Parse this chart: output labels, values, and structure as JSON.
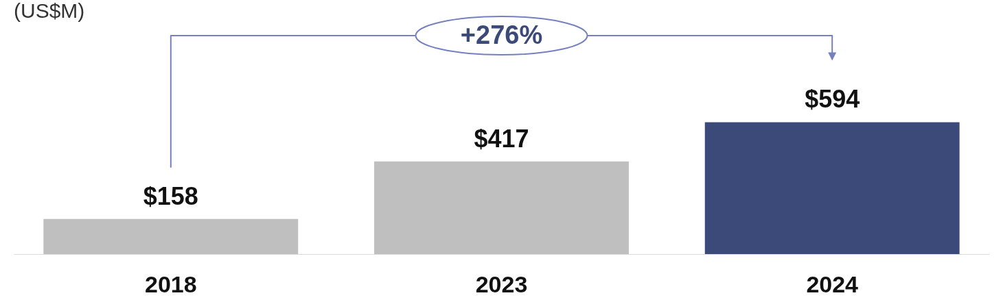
{
  "chart_data": {
    "type": "bar",
    "title": "(US$M)",
    "categories": [
      "2018",
      "2023",
      "2024"
    ],
    "values": [
      158,
      417,
      594
    ],
    "colors": [
      "#bfbfbf",
      "#bfbfbf",
      "#3c4a7a"
    ],
    "value_labels": [
      "$158",
      "$417",
      "$594"
    ],
    "annotations": [
      "+276%"
    ]
  }
}
